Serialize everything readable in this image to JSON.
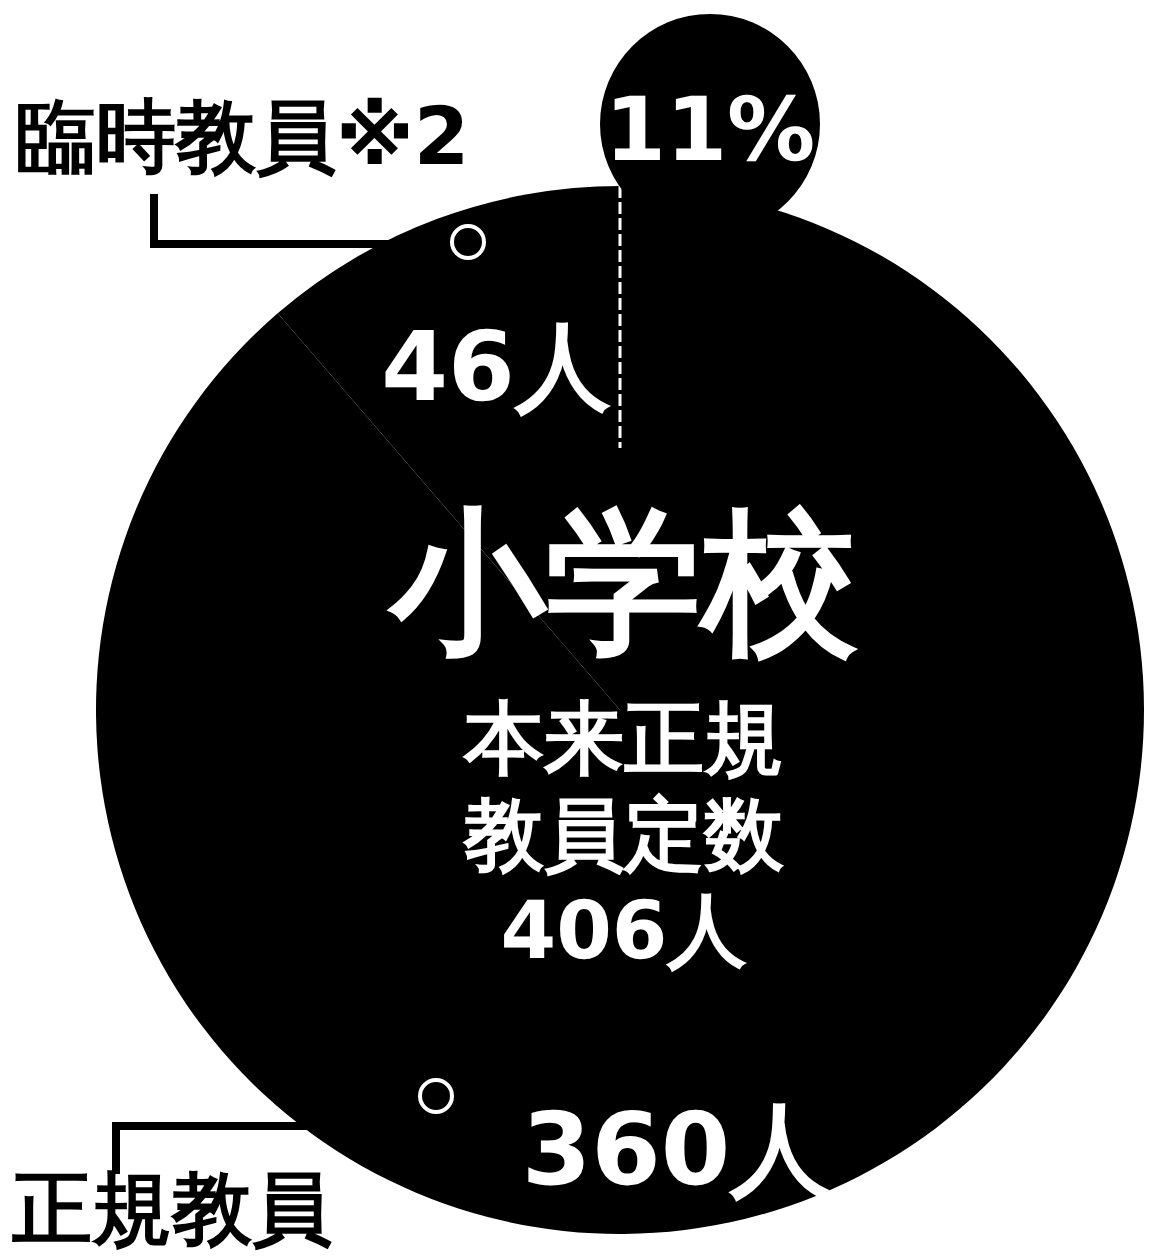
{
  "chart_data": {
    "type": "pie",
    "title": "小学校",
    "subtitle": "本来正規教員定数406人",
    "categories": [
      "臨時教員※2",
      "正規教員"
    ],
    "values": [
      46,
      360
    ],
    "value_labels": [
      "46人",
      "360人"
    ],
    "colors": [
      "#000000",
      "#000000"
    ],
    "annotations": [
      "11%"
    ]
  }
}
